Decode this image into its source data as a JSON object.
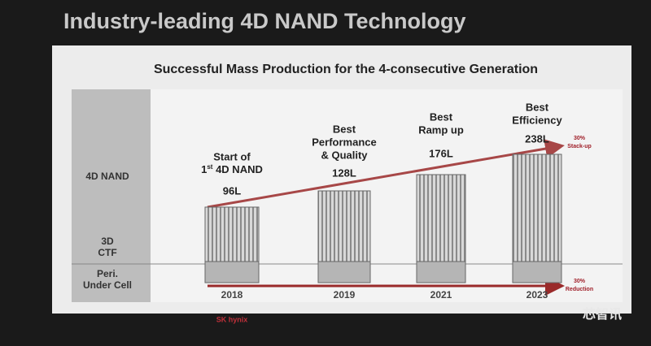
{
  "header": {
    "title": "Industry-leading 4D NAND Technology"
  },
  "slide": {
    "subtitle": "Successful Mass Production for the 4-consecutive Generation",
    "row_labels": [
      "4D NAND",
      [
        "3D",
        "CTF"
      ],
      [
        "Peri.",
        "Under Cell"
      ]
    ],
    "columns": [
      {
        "description": [
          "Start of",
          {
            "prefix": "1",
            "sup": "st",
            "suffix": " 4D NAND"
          }
        ],
        "layers": "96L",
        "year": "2018"
      },
      {
        "description": [
          "Best",
          "Performance",
          "& Quality"
        ],
        "layers": "128L",
        "year": "2019"
      },
      {
        "description": [
          "Best",
          "Ramp up"
        ],
        "layers": "176L",
        "year": "2021"
      },
      {
        "description": [
          "Best",
          "Efficiency"
        ],
        "layers": "238L",
        "year": "2023"
      }
    ],
    "annotations": [
      [
        "30%",
        "Stack-up"
      ],
      [
        "30%",
        "Reduction"
      ]
    ],
    "logo": "SK hynix"
  },
  "watermark": "芯智讯"
}
